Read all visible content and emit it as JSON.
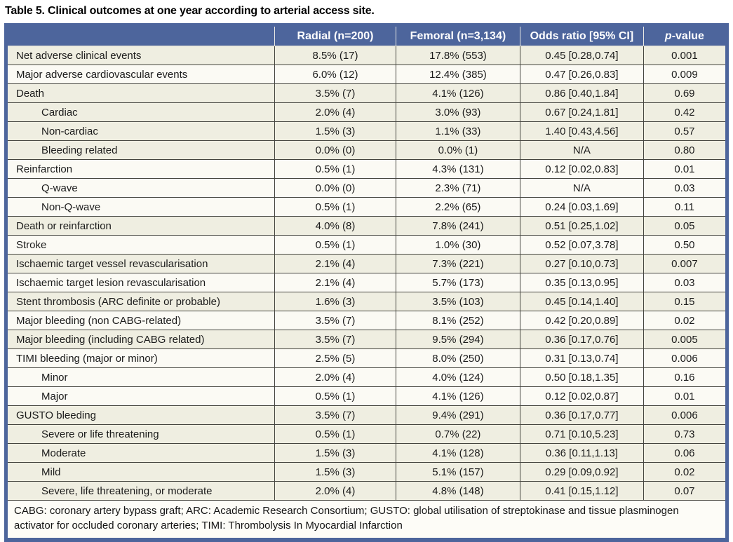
{
  "title": "Table 5. Clinical outcomes at one year according to arterial access site.",
  "colors": {
    "header_blue": "#4d659c",
    "row_beige": "#efeee1",
    "row_white": "#fbfaf4",
    "grid_line": "#45453f",
    "header_text": "#ffffff"
  },
  "table": {
    "columns": [
      "",
      "Radial (n=200)",
      "Femoral (n=3,134)",
      "Odds ratio [95% CI]",
      "p-value"
    ],
    "p_header": {
      "italic": "p",
      "rest": "-value"
    },
    "rows": [
      {
        "label": "Net adverse clinical events",
        "indent": false,
        "shade": "beige",
        "radial": "8.5% (17)",
        "femoral": "17.8% (553)",
        "odds_ratio": "0.45 [0.28,0.74]",
        "p": "0.001"
      },
      {
        "label": "Major adverse cardiovascular events",
        "indent": false,
        "shade": "white",
        "radial": "6.0% (12)",
        "femoral": "12.4% (385)",
        "odds_ratio": "0.47 [0.26,0.83]",
        "p": "0.009"
      },
      {
        "label": "Death",
        "indent": false,
        "shade": "beige",
        "radial": "3.5% (7)",
        "femoral": "4.1% (126)",
        "odds_ratio": "0.86 [0.40,1.84]",
        "p": "0.69"
      },
      {
        "label": "Cardiac",
        "indent": true,
        "shade": "beige",
        "radial": "2.0% (4)",
        "femoral": "3.0% (93)",
        "odds_ratio": "0.67 [0.24,1.81]",
        "p": "0.42"
      },
      {
        "label": "Non-cardiac",
        "indent": true,
        "shade": "beige",
        "radial": "1.5% (3)",
        "femoral": "1.1% (33)",
        "odds_ratio": "1.40 [0.43,4.56]",
        "p": "0.57"
      },
      {
        "label": "Bleeding related",
        "indent": true,
        "shade": "beige",
        "radial": "0.0% (0)",
        "femoral": "0.0% (1)",
        "odds_ratio": "N/A",
        "p": "0.80"
      },
      {
        "label": "Reinfarction",
        "indent": false,
        "shade": "white",
        "radial": "0.5% (1)",
        "femoral": "4.3% (131)",
        "odds_ratio": "0.12 [0.02,0.83]",
        "p": "0.01"
      },
      {
        "label": "Q-wave",
        "indent": true,
        "shade": "white",
        "radial": "0.0% (0)",
        "femoral": "2.3% (71)",
        "odds_ratio": "N/A",
        "p": "0.03"
      },
      {
        "label": "Non-Q-wave",
        "indent": true,
        "shade": "white",
        "radial": "0.5% (1)",
        "femoral": "2.2% (65)",
        "odds_ratio": "0.24 [0.03,1.69]",
        "p": "0.11"
      },
      {
        "label": "Death or reinfarction",
        "indent": false,
        "shade": "beige",
        "radial": "4.0% (8)",
        "femoral": "7.8% (241)",
        "odds_ratio": "0.51 [0.25,1.02]",
        "p": "0.05"
      },
      {
        "label": "Stroke",
        "indent": false,
        "shade": "white",
        "radial": "0.5% (1)",
        "femoral": "1.0% (30)",
        "odds_ratio": "0.52 [0.07,3.78]",
        "p": "0.50"
      },
      {
        "label": "Ischaemic target vessel revascularisation",
        "indent": false,
        "shade": "beige",
        "radial": "2.1% (4)",
        "femoral": "7.3% (221)",
        "odds_ratio": "0.27 [0.10,0.73]",
        "p": "0.007"
      },
      {
        "label": "Ischaemic target lesion revascularisation",
        "indent": false,
        "shade": "white",
        "radial": "2.1% (4)",
        "femoral": "5.7% (173)",
        "odds_ratio": "0.35 [0.13,0.95]",
        "p": "0.03"
      },
      {
        "label": "Stent thrombosis (ARC definite or probable)",
        "indent": false,
        "shade": "beige",
        "radial": "1.6% (3)",
        "femoral": "3.5% (103)",
        "odds_ratio": "0.45 [0.14,1.40]",
        "p": "0.15"
      },
      {
        "label": "Major bleeding (non CABG-related)",
        "indent": false,
        "shade": "white",
        "radial": "3.5% (7)",
        "femoral": "8.1% (252)",
        "odds_ratio": "0.42 [0.20,0.89]",
        "p": "0.02"
      },
      {
        "label": "Major bleeding (including CABG related)",
        "indent": false,
        "shade": "beige",
        "radial": "3.5% (7)",
        "femoral": "9.5% (294)",
        "odds_ratio": "0.36 [0.17,0.76]",
        "p": "0.005"
      },
      {
        "label": "TIMI bleeding (major or minor)",
        "indent": false,
        "shade": "white",
        "radial": "2.5% (5)",
        "femoral": "8.0% (250)",
        "odds_ratio": "0.31 [0.13,0.74]",
        "p": "0.006"
      },
      {
        "label": "Minor",
        "indent": true,
        "shade": "white",
        "radial": "2.0% (4)",
        "femoral": "4.0% (124)",
        "odds_ratio": "0.50 [0.18,1.35]",
        "p": "0.16"
      },
      {
        "label": "Major",
        "indent": true,
        "shade": "white",
        "radial": "0.5% (1)",
        "femoral": "4.1% (126)",
        "odds_ratio": "0.12 [0.02,0.87]",
        "p": "0.01"
      },
      {
        "label": "GUSTO bleeding",
        "indent": false,
        "shade": "beige",
        "radial": "3.5% (7)",
        "femoral": "9.4% (291)",
        "odds_ratio": "0.36 [0.17,0.77]",
        "p": "0.006"
      },
      {
        "label": "Severe or life threatening",
        "indent": true,
        "shade": "beige",
        "radial": "0.5% (1)",
        "femoral": "0.7% (22)",
        "odds_ratio": "0.71 [0.10,5.23]",
        "p": "0.73"
      },
      {
        "label": "Moderate",
        "indent": true,
        "shade": "beige",
        "radial": "1.5% (3)",
        "femoral": "4.1% (128)",
        "odds_ratio": "0.36 [0.11,1.13]",
        "p": "0.06"
      },
      {
        "label": "Mild",
        "indent": true,
        "shade": "beige",
        "radial": "1.5% (3)",
        "femoral": "5.1% (157)",
        "odds_ratio": "0.29 [0.09,0.92]",
        "p": "0.02"
      },
      {
        "label": "Severe, life threatening, or moderate",
        "indent": true,
        "shade": "beige",
        "radial": "2.0% (4)",
        "femoral": "4.8% (148)",
        "odds_ratio": "0.41 [0.15,1.12]",
        "p": "0.07"
      }
    ]
  },
  "footnote": "CABG: coronary artery bypass graft; ARC: Academic Research Consortium; GUSTO: global utilisation of streptokinase and tissue plasminogen activator for occluded coronary arteries; TIMI: Thrombolysis In Myocardial Infarction"
}
